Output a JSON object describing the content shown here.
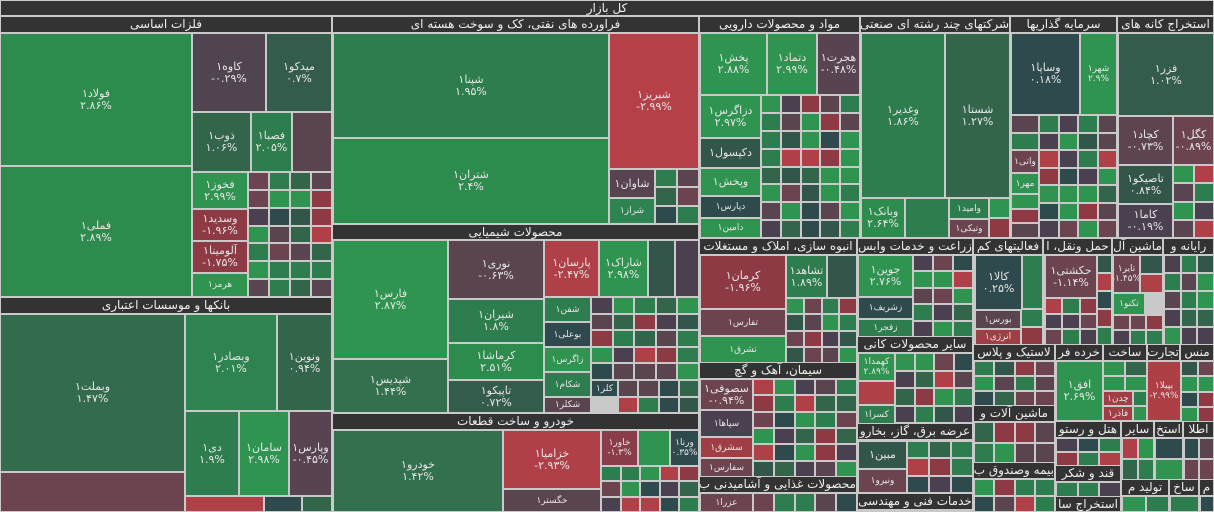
{
  "market_title": "کل بازار",
  "sectors": [
    {
      "title": "فلزات اساسی",
      "tiles": [
        {
          "name": "فولاد۱",
          "change": "۲.۸۶%",
          "color": "#2e8b4e"
        },
        {
          "name": "فملی۱",
          "change": "۲.۸۹%",
          "color": "#2e8b4e"
        },
        {
          "name": "کاوه۱",
          "change": "-۰.۲۹%",
          "color": "#4f4450"
        },
        {
          "name": "میدکو۱",
          "change": "۰.۷%",
          "color": "#335c4a"
        },
        {
          "name": "ذوب۱",
          "change": "۱.۰۶%",
          "color": "#33654a"
        },
        {
          "name": "فصبا۱",
          "change": "۲.۰۵%",
          "color": "#2e7d4e"
        },
        {
          "name": "فخوز۱",
          "change": "۲.۹۹%",
          "color": "#2e9450"
        },
        {
          "name": "وسدید۱",
          "change": "-۱.۹۶%",
          "color": "#8e3a45"
        },
        {
          "name": "آلومینا۱",
          "change": "-۱.۷۵%",
          "color": "#8e3a45"
        },
        {
          "name": "هرمز۱",
          "change": "",
          "color": "#2e9450"
        }
      ]
    },
    {
      "title": "بانکها و موسسات اعتباری",
      "tiles": [
        {
          "name": "وبملت۱",
          "change": "۱.۴۷%",
          "color": "#336b4d"
        },
        {
          "name": "وبصادر۱",
          "change": "۲.۰۱%",
          "color": "#2e8450"
        },
        {
          "name": "ونوین۱",
          "change": "۰.۹۴%",
          "color": "#33654a"
        },
        {
          "name": "دی۱",
          "change": "۱.۹%",
          "color": "#2e7d4e"
        },
        {
          "name": "سامان۱",
          "change": "۲.۹۸%",
          "color": "#2e9450"
        },
        {
          "name": "وپارس۱",
          "change": "-۰.۴۵%",
          "color": "#574450"
        }
      ]
    },
    {
      "title": "فراورده های نفتی، کک و سوخت هسته ای",
      "tiles": [
        {
          "name": "شپنا۱",
          "change": "۱.۹۵%",
          "color": "#2e7d4e"
        },
        {
          "name": "شتران۱",
          "change": "۲.۴%",
          "color": "#2e8b4e"
        },
        {
          "name": "شبریز۱",
          "change": "-۲.۹۹%",
          "color": "#b54048"
        },
        {
          "name": "شاوان۱",
          "change": "",
          "color": "#574450"
        },
        {
          "name": "شراز۱",
          "change": "",
          "color": "#2e8450"
        }
      ]
    },
    {
      "title": "محصولات شیمیایی",
      "tiles": [
        {
          "name": "فارس۱",
          "change": "۲.۸۷%",
          "color": "#2e9450"
        },
        {
          "name": "شپدیس۱",
          "change": "۱.۴۴%",
          "color": "#33704d"
        },
        {
          "name": "نوری۱",
          "change": "-۰.۶۳%",
          "color": "#5a4450"
        },
        {
          "name": "شیران۱",
          "change": "۱.۸%",
          "color": "#2e7d4e"
        },
        {
          "name": "کرماشا۱",
          "change": "۲.۵۱%",
          "color": "#2e8b4e"
        },
        {
          "name": "تاپیکو۱",
          "change": "۰.۷۲%",
          "color": "#335c4a"
        },
        {
          "name": "پارسان۱",
          "change": "-۲.۴۷%",
          "color": "#b04048"
        },
        {
          "name": "شاراک۱",
          "change": "۲.۹۸%",
          "color": "#2e9450"
        },
        {
          "name": "شفن۱",
          "change": "",
          "color": "#2e7d4e"
        },
        {
          "name": "بوعلی۱",
          "change": "",
          "color": "#2f4a4c"
        },
        {
          "name": "زاگرس۱",
          "change": "",
          "color": "#2e9450"
        },
        {
          "name": "شکام۱",
          "change": "",
          "color": "#2e7d4e"
        },
        {
          "name": "شکلر۱",
          "change": "",
          "color": "#5a4450"
        },
        {
          "name": "کلر۱",
          "change": "",
          "color": "#2f4a4c"
        }
      ]
    },
    {
      "title": "خودرو و ساخت قطعات",
      "tiles": [
        {
          "name": "خودرو۱",
          "change": "۱.۴۲%",
          "color": "#33704d"
        },
        {
          "name": "خزامیا۱",
          "change": "-۲.۹۳%",
          "color": "#b04048"
        },
        {
          "name": "خگستر۱",
          "change": "",
          "color": "#5a4450"
        },
        {
          "name": "خاور۱",
          "change": "-۱.۳%",
          "color": "#8a3d48"
        },
        {
          "name": "ورنا۱",
          "change": "۰.۳۵%",
          "color": "#2f4a4c"
        }
      ]
    },
    {
      "title": "مواد و محصولات دارویی",
      "tiles": [
        {
          "name": "پخش۱",
          "change": "۲.۸۸%",
          "color": "#2e9450"
        },
        {
          "name": "دتماد۱",
          "change": "۲.۹۹%",
          "color": "#2e9450"
        },
        {
          "name": "هجرت۱",
          "change": "-۰.۴۸%",
          "color": "#574450"
        },
        {
          "name": "دزاگرس۱",
          "change": "۲.۹۷%",
          "color": "#2e9450"
        },
        {
          "name": "دکپسول۱",
          "change": "",
          "color": "#33564a"
        },
        {
          "name": "وپخش۱",
          "change": "",
          "color": "#2e9450"
        },
        {
          "name": "دپارس۱",
          "change": "",
          "color": "#2f4a4c"
        },
        {
          "name": "دامین۱",
          "change": "",
          "color": "#2e9450"
        }
      ]
    },
    {
      "title": "شرکتهای چند رشته ای صنعتی",
      "tiles": [
        {
          "name": "وغدیر۱",
          "change": "۱.۸۶%",
          "color": "#2e7d4e"
        },
        {
          "name": "شستا۱",
          "change": "۱.۲۷%",
          "color": "#33654a"
        },
        {
          "name": "وبانک۱",
          "change": "۲.۶۴%",
          "color": "#2e8b4e"
        },
        {
          "name": "وامید۱",
          "change": "",
          "color": "#2e7d4e"
        },
        {
          "name": "وتیکی۱",
          "change": "",
          "color": "#6b4450"
        }
      ]
    },
    {
      "title": "سرمایه گذاریها",
      "tiles": [
        {
          "name": "وساپا۱",
          "change": "۰.۱۸%",
          "color": "#2f4a4c"
        },
        {
          "name": "شهر۱",
          "change": "۲.۹%",
          "color": "#2e9450"
        },
        {
          "name": "واتی۱",
          "change": "",
          "color": "#6b4450"
        },
        {
          "name": "مهر۱",
          "change": "",
          "color": "#2e9450"
        }
      ]
    },
    {
      "title": "استخراج کانه های",
      "tiles": [
        {
          "name": "فزر۱",
          "change": "۱.۰۲%",
          "color": "#335c4a"
        },
        {
          "name": "کچاد۱",
          "change": "-۰.۷۳%",
          "color": "#5e4450"
        },
        {
          "name": "کگل۱",
          "change": "-۰.۸۹%",
          "color": "#6b4450"
        },
        {
          "name": "تاصیکو۱",
          "change": "۰.۸۴%",
          "color": "#33564a"
        },
        {
          "name": "کاما۱",
          "change": "-۰.۱۹%",
          "color": "#4a4050"
        }
      ]
    },
    {
      "title": "انبوه سازی، املاک و مستغلات",
      "tiles": [
        {
          "name": "کرمان۱",
          "change": "-۱.۹۶%",
          "color": "#8e3a45"
        },
        {
          "name": "تفارس۱",
          "change": "",
          "color": "#6b4450"
        },
        {
          "name": "تشرق۱",
          "change": "",
          "color": "#2e9450"
        },
        {
          "name": "تشاهد۱",
          "change": "۱.۸۹%",
          "color": "#2e7d4e"
        }
      ]
    },
    {
      "title": "زراعت و خدمات وابس",
      "tiles": [
        {
          "name": "جوین۱",
          "change": "۲.۷۶%",
          "color": "#2e9450"
        },
        {
          "name": "زشریف۱",
          "change": "",
          "color": "#2f4a4c"
        },
        {
          "name": "زفجر۱",
          "change": "",
          "color": "#2e7d4e"
        }
      ]
    },
    {
      "title": "فعالیتهای کم",
      "tiles": [
        {
          "name": "کالا۱",
          "change": "۰.۲۵%",
          "color": "#2f4a4c"
        },
        {
          "name": "بورس۱",
          "change": "",
          "color": "#5a4450"
        },
        {
          "name": "انرژی۱",
          "change": "",
          "color": "#a03e45"
        }
      ]
    },
    {
      "title": "حمل ونقل، ا",
      "tiles": [
        {
          "name": "حکشتی۱",
          "change": "-۱.۱۴%",
          "color": "#6b4450"
        }
      ]
    },
    {
      "title": "ماشین آل",
      "tiles": [
        {
          "name": "تایر۱",
          "change": "-۱.۴۵%",
          "color": "#6b4450"
        },
        {
          "name": "تکنو۱",
          "change": "",
          "color": "#2e9450"
        }
      ]
    },
    {
      "title": "رایانه و",
      "tiles": []
    },
    {
      "title": "سیمان، آهک و گچ",
      "tiles": [
        {
          "name": "سصوفی۱",
          "change": "-۰.۹۴%",
          "color": "#6b4450"
        },
        {
          "name": "سپاها۱",
          "change": "",
          "color": "#4a4050"
        },
        {
          "name": "سشرق۱",
          "change": "",
          "color": "#a03e45"
        },
        {
          "name": "سفارس۱",
          "change": "",
          "color": "#6b4450"
        }
      ]
    },
    {
      "title": "محصولات غذایی و آشامیدنی ب",
      "tiles": [
        {
          "name": "عزرا۱",
          "change": "",
          "color": "#6b4450"
        }
      ]
    },
    {
      "title": "سایر محصولات کانی",
      "tiles": [
        {
          "name": "کهمدا۱",
          "change": "۲.۸۹%",
          "color": "#2e9450"
        },
        {
          "name": "کسرا۱",
          "change": "",
          "color": "#2e7d4e"
        }
      ]
    },
    {
      "title": "عرضه برق، گاز، بخارو",
      "tiles": [
        {
          "name": "مبین۱",
          "change": "",
          "color": "#33564a"
        },
        {
          "name": "ونیرو۱",
          "change": "",
          "color": "#6b4450"
        }
      ]
    },
    {
      "title": "خدمات فنی و مهندسی",
      "tiles": []
    },
    {
      "title": "لاستیک و پلاس",
      "tiles": []
    },
    {
      "title": "خرده فر",
      "tiles": [
        {
          "name": "افق۱",
          "change": "۲.۶۹%",
          "color": "#2e9450"
        }
      ]
    },
    {
      "title": "ساخت",
      "tiles": [
        {
          "name": "چدن۱",
          "change": "",
          "color": "#a03e45"
        },
        {
          "name": "فاذر۱",
          "change": "",
          "color": "#a03e45"
        }
      ]
    },
    {
      "title": "تجارت",
      "tiles": [
        {
          "name": "بپیلا۱",
          "change": "-۲.۹۹%",
          "color": "#ae3f45"
        }
      ]
    },
    {
      "title": "منس",
      "tiles": []
    },
    {
      "title": "ماشین آلات و",
      "tiles": []
    },
    {
      "title": "هتل و رستو",
      "tiles": []
    },
    {
      "title": "سایر",
      "tiles": []
    },
    {
      "title": "استخ",
      "tiles": []
    },
    {
      "title": "اطلا",
      "tiles": []
    },
    {
      "title": "بیمه وصندوق ب",
      "tiles": []
    },
    {
      "title": "قند و شکر",
      "tiles": []
    },
    {
      "title": "تولید م",
      "tiles": []
    },
    {
      "title": "ساخ",
      "tiles": []
    },
    {
      "title": "م",
      "tiles": []
    },
    {
      "title": "استخراج سا",
      "tiles": []
    }
  ],
  "colors": {
    "header": "#333333",
    "strong_up": "#2e9450",
    "up": "#2e7d4e",
    "flat": "#2f4a4c",
    "down": "#6b4450",
    "strong_down": "#b04048"
  }
}
